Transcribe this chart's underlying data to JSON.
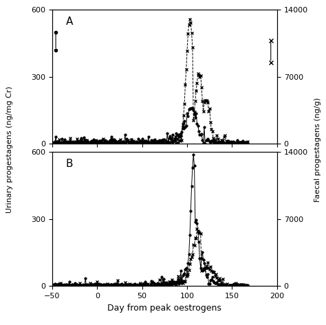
{
  "xlabel": "Day from peak oestrogens",
  "ylabel_left": "Urinary progestagens (ng/mg Cr)",
  "ylabel_right": "Faecal progestagens (ng/g)",
  "xlim": [
    -50,
    200
  ],
  "ylim_left": [
    0,
    600
  ],
  "ylim_right": [
    0,
    14000
  ],
  "yticks_left": [
    0,
    300,
    600
  ],
  "yticks_right": [
    0,
    7000,
    14000
  ],
  "xticks": [
    -50,
    0,
    50,
    100,
    150,
    200
  ],
  "panel_A_label": "A",
  "panel_B_label": "B",
  "background_color": "#ffffff",
  "urinary_style": {
    "color": "#000000",
    "linestyle": "-",
    "marker": "o",
    "markersize": 2.5,
    "linewidth": 0.7
  },
  "faecal_style": {
    "color": "#000000",
    "linestyle": "--",
    "marker": "x",
    "markersize": 3.5,
    "linewidth": 0.7
  }
}
